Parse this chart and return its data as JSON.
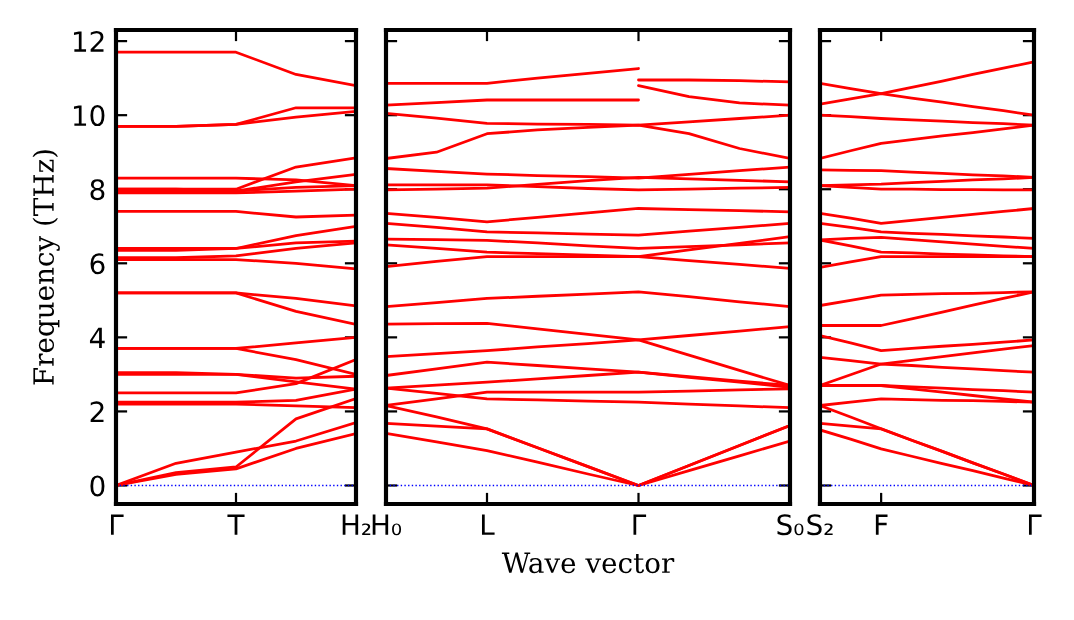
{
  "chart_data": [
    {
      "type": "line",
      "ylabel": "Frequency (THz)",
      "categories": [
        "Γ",
        null,
        "T",
        null,
        "H₂"
      ],
      "ylim": [
        -0.5,
        12.3
      ],
      "yticks": [
        0,
        2,
        4,
        6,
        8,
        10,
        12
      ],
      "ref_lines": [
        {
          "axis": "y",
          "value": 0,
          "label": null,
          "color": "#0000ff",
          "line_style": "dotted"
        }
      ],
      "series": [
        {
          "color": "#ff0000",
          "values": [
            0,
            0.35,
            0.5,
            1.8,
            2.35
          ]
        },
        {
          "color": "#ff0000",
          "values": [
            0,
            0.3,
            0.45,
            1.0,
            1.4
          ]
        },
        {
          "color": "#ff0000",
          "values": [
            0,
            0.6,
            0.9,
            1.2,
            1.7
          ]
        },
        {
          "color": "#ff0000",
          "values": [
            2.2,
            2.2,
            2.2,
            2.15,
            2.1
          ]
        },
        {
          "color": "#ff0000",
          "values": [
            2.25,
            2.25,
            2.25,
            2.3,
            2.6
          ]
        },
        {
          "color": "#ff0000",
          "values": [
            2.5,
            2.5,
            2.5,
            2.75,
            3.4
          ]
        },
        {
          "color": "#ff0000",
          "values": [
            3.0,
            3.0,
            3.0,
            2.8,
            2.6
          ]
        },
        {
          "color": "#ff0000",
          "values": [
            3.05,
            3.05,
            3.0,
            2.9,
            2.95
          ]
        },
        {
          "color": "#ff0000",
          "values": [
            3.7,
            3.7,
            3.7,
            3.4,
            3.0
          ]
        },
        {
          "color": "#ff0000",
          "values": [
            3.7,
            3.7,
            3.7,
            3.85,
            4.0
          ]
        },
        {
          "color": "#ff0000",
          "values": [
            5.2,
            5.2,
            5.2,
            5.05,
            4.85
          ]
        },
        {
          "color": "#ff0000",
          "values": [
            5.2,
            5.2,
            5.2,
            4.7,
            4.35
          ]
        },
        {
          "color": "#ff0000",
          "values": [
            6.1,
            6.1,
            6.1,
            6.0,
            5.85
          ]
        },
        {
          "color": "#ff0000",
          "values": [
            6.15,
            6.15,
            6.2,
            6.4,
            6.55
          ]
        },
        {
          "color": "#ff0000",
          "values": [
            6.35,
            6.35,
            6.4,
            6.55,
            6.6
          ]
        },
        {
          "color": "#ff0000",
          "values": [
            6.4,
            6.4,
            6.4,
            6.75,
            7.0
          ]
        },
        {
          "color": "#ff0000",
          "values": [
            7.4,
            7.4,
            7.4,
            7.25,
            7.3
          ]
        },
        {
          "color": "#ff0000",
          "values": [
            7.9,
            7.9,
            7.9,
            7.95,
            8.0
          ]
        },
        {
          "color": "#ff0000",
          "values": [
            7.95,
            7.95,
            7.95,
            8.05,
            8.1
          ]
        },
        {
          "color": "#ff0000",
          "values": [
            8.0,
            8.0,
            7.95,
            8.2,
            8.4
          ]
        },
        {
          "color": "#ff0000",
          "values": [
            8.0,
            8.0,
            8.0,
            8.6,
            8.85
          ]
        },
        {
          "color": "#ff0000",
          "values": [
            8.3,
            8.3,
            8.3,
            8.25,
            8.1
          ]
        },
        {
          "color": "#ff0000",
          "values": [
            9.7,
            9.7,
            9.75,
            9.95,
            10.1
          ]
        },
        {
          "color": "#ff0000",
          "values": [
            9.7,
            9.7,
            9.75,
            10.2,
            10.2
          ]
        },
        {
          "color": "#ff0000",
          "values": [
            11.7,
            11.7,
            11.7,
            11.1,
            10.8
          ]
        }
      ]
    },
    {
      "type": "line",
      "xlabel": "Wave vector",
      "categories": [
        "H₀",
        null,
        "L",
        null,
        null,
        "Γ",
        null,
        null,
        "S₀"
      ],
      "ylim": [
        -0.5,
        12.3
      ],
      "tick_labels": "x",
      "ref_lines": [
        {
          "axis": "y",
          "value": 0,
          "label": null,
          "color": "#0000ff",
          "line_style": "dotted"
        }
      ],
      "series": [
        {
          "color": "#ff0000",
          "values": [
            10.86,
            10.86,
            10.86,
            11.0,
            11.13,
            11.26,
            null,
            null,
            null
          ]
        },
        {
          "color": "#ff0000",
          "values": [
            null,
            null,
            null,
            null,
            null,
            10.95,
            10.95,
            10.93,
            10.9
          ]
        },
        {
          "color": "#ff0000",
          "values": [
            10.27,
            10.34,
            10.41,
            10.41,
            10.41,
            10.41,
            null,
            null,
            null
          ]
        },
        {
          "color": "#ff0000",
          "values": [
            null,
            null,
            null,
            null,
            null,
            10.8,
            10.5,
            10.33,
            10.27
          ]
        },
        {
          "color": "#ff0000",
          "values": [
            10.05,
            9.92,
            9.78,
            9.76,
            9.75,
            9.73,
            9.82,
            9.91,
            10.0
          ]
        },
        {
          "color": "#ff0000",
          "values": [
            8.83,
            9.0,
            9.5,
            9.6,
            9.67,
            9.73,
            9.5,
            9.1,
            8.83
          ]
        },
        {
          "color": "#ff0000",
          "values": [
            8.56,
            8.48,
            8.41,
            8.37,
            8.34,
            8.3,
            8.4,
            8.5,
            8.6
          ]
        },
        {
          "color": "#ff0000",
          "values": [
            8.12,
            8.12,
            8.12,
            8.07,
            8.02,
            7.98,
            8.0,
            8.03,
            8.05
          ]
        },
        {
          "color": "#ff0000",
          "values": [
            7.98,
            8.0,
            8.03,
            8.13,
            8.23,
            8.32,
            8.28,
            8.24,
            8.2
          ]
        },
        {
          "color": "#ff0000",
          "values": [
            7.35,
            7.24,
            7.12,
            7.24,
            7.36,
            7.48,
            7.45,
            7.42,
            7.39
          ]
        },
        {
          "color": "#ff0000",
          "values": [
            7.08,
            6.97,
            6.85,
            6.82,
            6.79,
            6.76,
            6.87,
            6.97,
            7.08
          ]
        },
        {
          "color": "#ff0000",
          "values": [
            6.65,
            6.64,
            6.62,
            6.55,
            6.47,
            6.4,
            6.45,
            6.5,
            6.55
          ]
        },
        {
          "color": "#ff0000",
          "values": [
            6.5,
            6.4,
            6.3,
            6.26,
            6.22,
            6.18,
            6.36,
            6.54,
            6.72
          ]
        },
        {
          "color": "#ff0000",
          "values": [
            5.91,
            6.05,
            6.18,
            6.18,
            6.18,
            6.18,
            6.07,
            5.97,
            5.86
          ]
        },
        {
          "color": "#ff0000",
          "values": [
            4.83,
            4.94,
            5.05,
            5.11,
            5.17,
            5.23,
            5.1,
            4.96,
            4.83
          ]
        },
        {
          "color": "#ff0000",
          "values": [
            4.36,
            4.37,
            4.38,
            4.23,
            4.08,
            3.93,
            4.05,
            4.17,
            4.29
          ]
        },
        {
          "color": "#ff0000",
          "values": [
            3.48,
            3.56,
            3.64,
            3.74,
            3.83,
            3.93,
            3.52,
            3.11,
            2.7
          ]
        },
        {
          "color": "#ff0000",
          "values": [
            2.97,
            3.15,
            3.33,
            3.24,
            3.15,
            3.06,
            2.94,
            2.82,
            2.7
          ]
        },
        {
          "color": "#ff0000",
          "values": [
            2.63,
            2.71,
            2.79,
            2.88,
            2.97,
            3.06,
            2.92,
            2.79,
            2.65
          ]
        },
        {
          "color": "#ff0000",
          "values": [
            2.16,
            2.34,
            2.52,
            2.52,
            2.52,
            2.52,
            2.55,
            2.58,
            2.61
          ]
        },
        {
          "color": "#ff0000",
          "values": [
            2.63,
            2.49,
            2.34,
            2.31,
            2.28,
            2.25,
            2.2,
            2.15,
            2.1
          ]
        },
        {
          "color": "#ff0000",
          "values": [
            2.16,
            1.85,
            1.53,
            1.02,
            0.51,
            0,
            0.54,
            1.08,
            1.62
          ]
        },
        {
          "color": "#ff0000",
          "values": [
            1.68,
            1.6,
            1.53,
            1.02,
            0.51,
            0,
            0.54,
            1.08,
            1.62
          ]
        },
        {
          "color": "#ff0000",
          "values": [
            1.41,
            1.18,
            0.94,
            0.63,
            0.31,
            0,
            0.4,
            0.8,
            1.2
          ]
        }
      ]
    },
    {
      "type": "line",
      "categories": [
        "S₂",
        null,
        "F",
        null,
        null,
        null,
        null,
        "Γ"
      ],
      "ylim": [
        -0.5,
        12.3
      ],
      "tick_labels": "x",
      "ref_lines": [
        {
          "axis": "y",
          "value": 0,
          "label": null,
          "color": "#0000ff",
          "line_style": "dotted"
        }
      ],
      "series": [
        {
          "color": "#ff0000",
          "values": [
            10.86,
            10.72,
            10.58,
            10.75,
            10.92,
            11.1,
            11.27,
            11.44
          ]
        },
        {
          "color": "#ff0000",
          "values": [
            10.3,
            10.44,
            10.58,
            10.46,
            10.35,
            10.23,
            10.12,
            10.0
          ]
        },
        {
          "color": "#ff0000",
          "values": [
            10.0,
            9.96,
            9.91,
            9.87,
            9.84,
            9.8,
            9.77,
            9.73
          ]
        },
        {
          "color": "#ff0000",
          "values": [
            8.83,
            9.04,
            9.24,
            9.34,
            9.44,
            9.53,
            9.63,
            9.73
          ]
        },
        {
          "color": "#ff0000",
          "values": [
            8.52,
            8.51,
            8.5,
            8.46,
            8.43,
            8.39,
            8.36,
            8.32
          ]
        },
        {
          "color": "#ff0000",
          "values": [
            8.1,
            8.12,
            8.14,
            8.18,
            8.21,
            8.25,
            8.28,
            8.32
          ]
        },
        {
          "color": "#ff0000",
          "values": [
            8.1,
            8.05,
            8.0,
            8.0,
            7.99,
            7.99,
            7.98,
            7.98
          ]
        },
        {
          "color": "#ff0000",
          "values": [
            7.35,
            7.22,
            7.08,
            7.16,
            7.24,
            7.32,
            7.4,
            7.48
          ]
        },
        {
          "color": "#ff0000",
          "values": [
            7.08,
            6.97,
            6.85,
            6.81,
            6.78,
            6.74,
            6.71,
            6.67
          ]
        },
        {
          "color": "#ff0000",
          "values": [
            6.63,
            6.67,
            6.7,
            6.64,
            6.58,
            6.52,
            6.46,
            6.4
          ]
        },
        {
          "color": "#ff0000",
          "values": [
            6.63,
            6.47,
            6.3,
            6.28,
            6.25,
            6.23,
            6.2,
            6.18
          ]
        },
        {
          "color": "#ff0000",
          "values": [
            5.89,
            6.04,
            6.18,
            6.18,
            6.18,
            6.18,
            6.18,
            6.18
          ]
        },
        {
          "color": "#ff0000",
          "values": [
            4.86,
            5.0,
            5.14,
            5.16,
            5.18,
            5.19,
            5.21,
            5.23
          ]
        },
        {
          "color": "#ff0000",
          "values": [
            4.32,
            4.32,
            4.32,
            4.5,
            4.68,
            4.87,
            5.05,
            5.23
          ]
        },
        {
          "color": "#ff0000",
          "values": [
            4.05,
            3.85,
            3.64,
            3.7,
            3.76,
            3.81,
            3.87,
            3.93
          ]
        },
        {
          "color": "#ff0000",
          "values": [
            3.46,
            3.37,
            3.28,
            3.38,
            3.48,
            3.58,
            3.68,
            3.78
          ]
        },
        {
          "color": "#ff0000",
          "values": [
            2.7,
            2.99,
            3.28,
            3.24,
            3.19,
            3.15,
            3.1,
            3.06
          ]
        },
        {
          "color": "#ff0000",
          "values": [
            2.7,
            2.7,
            2.7,
            2.66,
            2.63,
            2.59,
            2.56,
            2.52
          ]
        },
        {
          "color": "#ff0000",
          "values": [
            2.7,
            2.7,
            2.7,
            2.61,
            2.52,
            2.43,
            2.34,
            2.25
          ]
        },
        {
          "color": "#ff0000",
          "values": [
            2.16,
            2.25,
            2.34,
            2.32,
            2.3,
            2.29,
            2.27,
            2.25
          ]
        },
        {
          "color": "#ff0000",
          "values": [
            2.16,
            1.85,
            1.53,
            1.22,
            0.92,
            0.61,
            0.31,
            0
          ]
        },
        {
          "color": "#ff0000",
          "values": [
            1.68,
            1.6,
            1.53,
            1.22,
            0.92,
            0.61,
            0.31,
            0
          ]
        },
        {
          "color": "#ff0000",
          "values": [
            1.5,
            1.25,
            0.99,
            0.79,
            0.59,
            0.4,
            0.2,
            0
          ]
        }
      ]
    }
  ]
}
